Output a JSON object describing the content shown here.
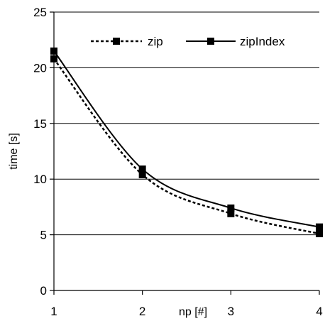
{
  "chart_data": {
    "type": "line",
    "title": "",
    "xlabel": "np [#]",
    "ylabel": "time [s]",
    "x": [
      1,
      2,
      3,
      4
    ],
    "x_ticks": [
      "1",
      "2",
      "3",
      "4"
    ],
    "y_ticks": [
      "0",
      "5",
      "10",
      "15",
      "20",
      "25"
    ],
    "xlim": [
      1,
      4
    ],
    "ylim": [
      0,
      25
    ],
    "grid": "horizontal",
    "legend_position": "top-right",
    "series": [
      {
        "name": "zip",
        "values": [
          20.8,
          10.4,
          6.9,
          5.1
        ],
        "style": "dashed",
        "color": "#000000"
      },
      {
        "name": "zipIndex",
        "values": [
          21.5,
          10.9,
          7.4,
          5.7
        ],
        "style": "solid",
        "color": "#000000"
      }
    ]
  }
}
